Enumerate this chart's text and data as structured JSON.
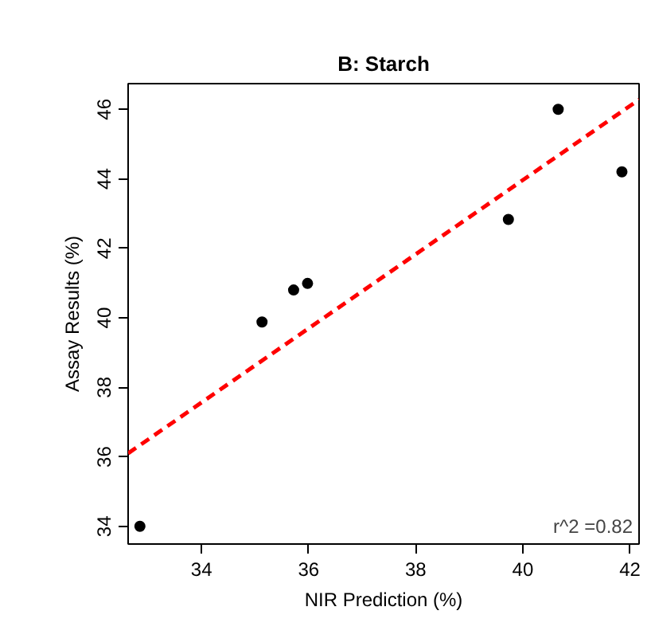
{
  "chart_data": {
    "type": "scatter",
    "title": "B: Starch",
    "xlabel": "NIR Prediction (%)",
    "ylabel": "Assay Results (%)",
    "xlim": [
      32.63,
      42.17
    ],
    "ylim": [
      33.49,
      46.74
    ],
    "xticks": [
      34,
      36,
      38,
      40,
      42
    ],
    "yticks": [
      34,
      36,
      38,
      40,
      42,
      44,
      46
    ],
    "grid": false,
    "marker": "circle",
    "series": [
      {
        "color": "#000000",
        "x": [
          32.85,
          35.13,
          35.72,
          35.98,
          39.73,
          40.66,
          41.85
        ],
        "values": [
          34.0,
          39.88,
          40.8,
          40.99,
          42.83,
          46.0,
          44.2
        ]
      },
      {
        "type": "line",
        "color": "#ff0000",
        "line_style": "dashed",
        "marker": "none",
        "x": [
          32.63,
          42.17
        ],
        "values": [
          36.1,
          46.28
        ]
      }
    ],
    "annotations": [
      "r^2 =0.82"
    ]
  }
}
